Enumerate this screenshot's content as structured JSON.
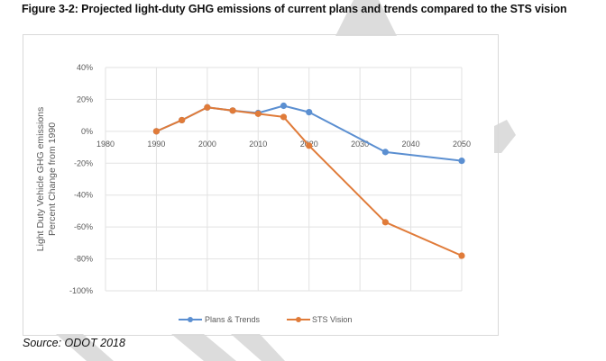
{
  "figure": {
    "title": "Figure 3-2: Projected light-duty GHG emissions of current plans and trends compared to the STS vision",
    "source": "Source: ODOT 2018"
  },
  "colors": {
    "plans_trends": "#5b8fd1",
    "sts_vision": "#e07b39",
    "grid": "#e2e2e2",
    "tick_text": "#595959",
    "watermark": "#dcdcdc"
  },
  "chart_data": {
    "type": "line",
    "title": "",
    "xlabel": "",
    "ylabel_lines": [
      "Light Duty  Vehicle GHG emissions",
      "Percent Change from 1990"
    ],
    "xlim": [
      1980,
      2050
    ],
    "ylim": [
      -100,
      40
    ],
    "x_ticks": [
      1980,
      1990,
      2000,
      2010,
      2020,
      2030,
      2040,
      2050
    ],
    "x_tick_labels": [
      "1980",
      "1990",
      "2000",
      "2010",
      "2020",
      "2030",
      "2040",
      "2050"
    ],
    "y_ticks": [
      40,
      20,
      0,
      -20,
      -40,
      -60,
      -80,
      -100
    ],
    "y_tick_labels": [
      "40%",
      "20%",
      "0%",
      "-20%",
      "-40%",
      "-60%",
      "-80%",
      "-100%"
    ],
    "grid": true,
    "legend_position": "bottom",
    "series": [
      {
        "name": "Plans & Trends",
        "x": [
          1990,
          1995,
          2000,
          2005,
          2010,
          2015,
          2020,
          2035,
          2050
        ],
        "values": [
          0,
          7,
          15,
          13,
          11.5,
          16,
          12,
          -13,
          -18.5
        ]
      },
      {
        "name": "STS Vision",
        "x": [
          1990,
          1995,
          2000,
          2005,
          2010,
          2015,
          2020,
          2035,
          2050
        ],
        "values": [
          0,
          7,
          15,
          13,
          11,
          9,
          -9,
          -57,
          -78
        ]
      }
    ]
  }
}
